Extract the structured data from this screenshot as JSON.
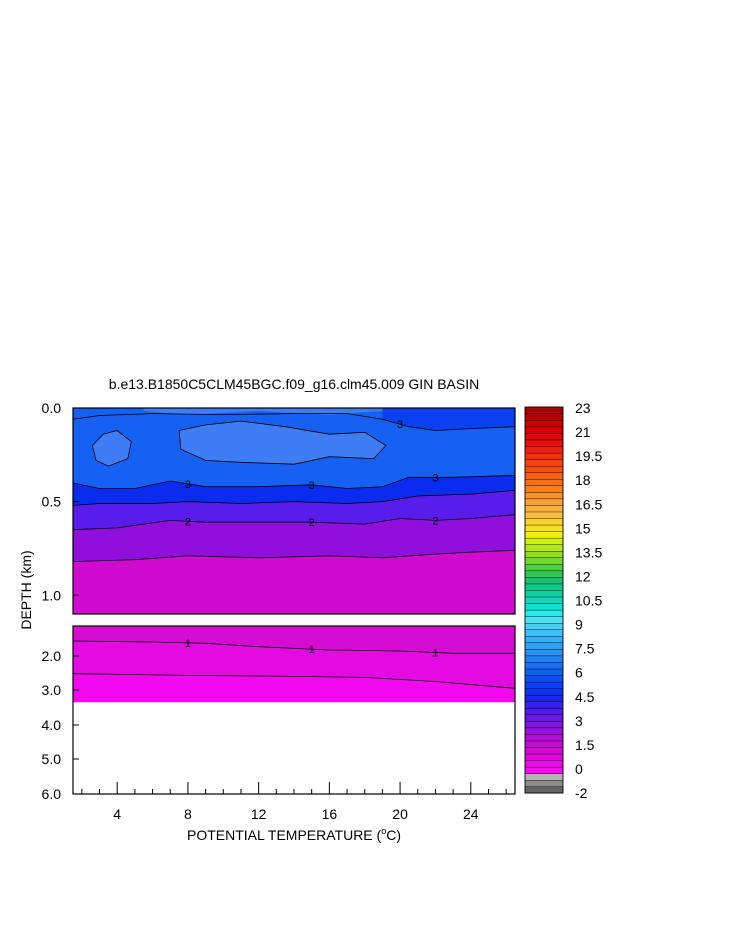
{
  "chart_data": {
    "type": "contour",
    "title": "b.e13.B1850C5CLM45BGC.f09_g16.clm45.009 GIN BASIN",
    "xlabel": "POTENTIAL TEMPERATURE (",
    "xlabel_sup": "o",
    "xlabel_tail": "C)",
    "ylabel": "DEPTH (km)",
    "x_ticks": [
      "4",
      "8",
      "12",
      "16",
      "20",
      "24"
    ],
    "x_tick_values": [
      4,
      8,
      12,
      16,
      20,
      24
    ],
    "xlim": [
      1.5,
      26.5
    ],
    "upper_panel": {
      "ylim": [
        0.0,
        1.1
      ],
      "y_ticks": [
        "0.0",
        "0.5",
        "1.0"
      ],
      "y_tick_values": [
        0.0,
        0.5,
        1.0
      ],
      "bands": [
        {
          "level": 3.75,
          "color": "#1660f4",
          "top": [
            [
              1.5,
              0
            ],
            [
              26.5,
              0
            ]
          ],
          "bottom": [
            [
              1.5,
              0.4
            ],
            [
              26.5,
              0.4
            ]
          ]
        },
        {
          "level": 3.0,
          "color": "#0a2cf0",
          "top": [
            [
              1.5,
              0.4
            ],
            [
              26.5,
              0.4
            ]
          ],
          "bottom": [
            [
              1.5,
              0.52
            ],
            [
              26.5,
              0.52
            ]
          ]
        },
        {
          "level": 2.5,
          "color": "#5a1cea",
          "top": [
            [
              1.5,
              0.52
            ],
            [
              26.5,
              0.52
            ]
          ],
          "bottom": [
            [
              1.5,
              0.65
            ],
            [
              26.5,
              0.65
            ]
          ]
        },
        {
          "level": 2.0,
          "color": "#8f10dc",
          "top": [
            [
              1.5,
              0.65
            ],
            [
              26.5,
              0.65
            ]
          ],
          "bottom": [
            [
              1.5,
              0.82
            ],
            [
              26.5,
              0.82
            ]
          ]
        },
        {
          "level": 1.5,
          "color": "#d10ad0",
          "top": [
            [
              1.5,
              0.82
            ],
            [
              26.5,
              0.82
            ]
          ],
          "bottom": [
            [
              1.5,
              1.1
            ],
            [
              26.5,
              1.1
            ]
          ]
        }
      ],
      "contour_lines": [
        {
          "label": "3",
          "points": [
            [
              1.5,
              0.06
            ],
            [
              3,
              0.04
            ],
            [
              6,
              0.03
            ],
            [
              10,
              0.035
            ],
            [
              14,
              0.03
            ],
            [
              17,
              0.03
            ],
            [
              19,
              0.06
            ],
            [
              20.5,
              0.1
            ],
            [
              22,
              0.12
            ],
            [
              24,
              0.11
            ],
            [
              26.5,
              0.1
            ]
          ],
          "label_x": 20
        },
        {
          "label": "3",
          "points": [
            [
              1.5,
              0.4
            ],
            [
              3,
              0.43
            ],
            [
              5,
              0.43
            ],
            [
              7,
              0.39
            ],
            [
              9,
              0.42
            ],
            [
              12,
              0.42
            ],
            [
              15,
              0.41
            ],
            [
              17,
              0.43
            ],
            [
              19,
              0.42
            ],
            [
              20.5,
              0.37
            ],
            [
              23,
              0.37
            ],
            [
              26.5,
              0.36
            ]
          ],
          "label_x": 8,
          "label_x2": 15,
          "label_x3": 22
        },
        {
          "label": "2",
          "points": [
            [
              1.5,
              0.52
            ],
            [
              3,
              0.51
            ],
            [
              6,
              0.51
            ],
            [
              8,
              0.5
            ],
            [
              11,
              0.51
            ],
            [
              14,
              0.5
            ],
            [
              17,
              0.51
            ],
            [
              19,
              0.5
            ],
            [
              21,
              0.47
            ],
            [
              24,
              0.46
            ],
            [
              26.5,
              0.44
            ]
          ]
        },
        {
          "label": "2",
          "points": [
            [
              1.5,
              0.65
            ],
            [
              4,
              0.64
            ],
            [
              7,
              0.6
            ],
            [
              9,
              0.61
            ],
            [
              12,
              0.61
            ],
            [
              15,
              0.61
            ],
            [
              18,
              0.62
            ],
            [
              20,
              0.59
            ],
            [
              22,
              0.6
            ],
            [
              24,
              0.59
            ],
            [
              26.5,
              0.57
            ]
          ],
          "label_x": 8,
          "label_x2": 15,
          "label_x3": 22
        },
        {
          "label": "",
          "points": [
            [
              1.5,
              0.82
            ],
            [
              5,
              0.81
            ],
            [
              8,
              0.79
            ],
            [
              12,
              0.8
            ],
            [
              16,
              0.79
            ],
            [
              19,
              0.8
            ],
            [
              22,
              0.78
            ],
            [
              24,
              0.77
            ],
            [
              26.5,
              0.76
            ]
          ]
        }
      ],
      "blobs": [
        {
          "color": "#3f7df6",
          "points": [
            [
              2.6,
              0.2
            ],
            [
              3.2,
              0.14
            ],
            [
              4,
              0.12
            ],
            [
              4.8,
              0.18
            ],
            [
              4.6,
              0.27
            ],
            [
              3.5,
              0.31
            ],
            [
              2.8,
              0.28
            ]
          ]
        },
        {
          "color": "#3f7df6",
          "points": [
            [
              7.5,
              0.12
            ],
            [
              9,
              0.09
            ],
            [
              11,
              0.07
            ],
            [
              13.5,
              0.1
            ],
            [
              16,
              0.14
            ],
            [
              18,
              0.13
            ],
            [
              19.2,
              0.2
            ],
            [
              18.5,
              0.27
            ],
            [
              16,
              0.26
            ],
            [
              14,
              0.3
            ],
            [
              11,
              0.29
            ],
            [
              9,
              0.28
            ],
            [
              7.6,
              0.22
            ]
          ]
        },
        {
          "color": "#3f7df6",
          "points": [
            [
              5.5,
              0.0
            ],
            [
              8,
              0.02
            ],
            [
              12,
              0.0
            ],
            [
              16,
              0.02
            ],
            [
              19,
              0.0
            ]
          ]
        }
      ]
    },
    "lower_panel": {
      "ylim": [
        1.1,
        6.0
      ],
      "y_ticks": [
        "2.0",
        "3.0",
        "4.0",
        "5.0",
        "6.0"
      ],
      "y_tick_values": [
        2.0,
        3.0,
        4.0,
        5.0,
        6.0
      ],
      "data_bottom": 3.35,
      "bands": [
        {
          "level": 1.0,
          "color": "#d60cd2"
        },
        {
          "level": 0.5,
          "color": "#e40be2"
        },
        {
          "level": 0.0,
          "color": "#f209f0"
        }
      ],
      "contour_lines": [
        {
          "label": "1",
          "points": [
            [
              1.5,
              1.55
            ],
            [
              6,
              1.58
            ],
            [
              9,
              1.62
            ],
            [
              12,
              1.72
            ],
            [
              16,
              1.82
            ],
            [
              20,
              1.85
            ],
            [
              23,
              1.92
            ],
            [
              26.5,
              1.92
            ]
          ],
          "label_xs": [
            8,
            15,
            22
          ]
        },
        {
          "label": "",
          "points": [
            [
              1.5,
              2.52
            ],
            [
              8,
              2.57
            ],
            [
              14,
              2.6
            ],
            [
              18,
              2.63
            ],
            [
              22,
              2.75
            ],
            [
              26.5,
              2.95
            ]
          ]
        }
      ]
    },
    "colorbar": {
      "labels": [
        "23",
        "21",
        "19.5",
        "18",
        "16.5",
        "15",
        "13.5",
        "12",
        "10.5",
        "9",
        "7.5",
        "6",
        "4.5",
        "3",
        "1.5",
        "0",
        "-2"
      ],
      "colors": [
        "#646464",
        "#8c8c8c",
        "#b4b4b4",
        "#f60bf4",
        "#ec0ae8",
        "#e00adc",
        "#d30bd0",
        "#c40cd0",
        "#b00dd6",
        "#9a10dc",
        "#8014e2",
        "#6818e6",
        "#4f1ce9",
        "#3422ec",
        "#1a28ef",
        "#0c32f2",
        "#0a40f2",
        "#0e50f4",
        "#1460f4",
        "#1a70f5",
        "#2080f6",
        "#2890f7",
        "#30a0f8",
        "#38b0f8",
        "#40c0f9",
        "#48d0fa",
        "#50e0fa",
        "#28e8e8",
        "#10e0d0",
        "#10d8b8",
        "#10d0a0",
        "#10c888",
        "#18c070",
        "#30c850",
        "#50d040",
        "#70d830",
        "#90e020",
        "#b0e818",
        "#d0f010",
        "#f0f010",
        "#f8e020",
        "#f8d030",
        "#f8c040",
        "#f8b040",
        "#f8a040",
        "#f89030",
        "#f88020",
        "#f87010",
        "#f86010",
        "#f85010",
        "#f84010",
        "#f83010",
        "#f02010",
        "#e81010",
        "#e00808",
        "#d80000",
        "#c80000",
        "#b80000",
        "#a80000"
      ]
    }
  }
}
